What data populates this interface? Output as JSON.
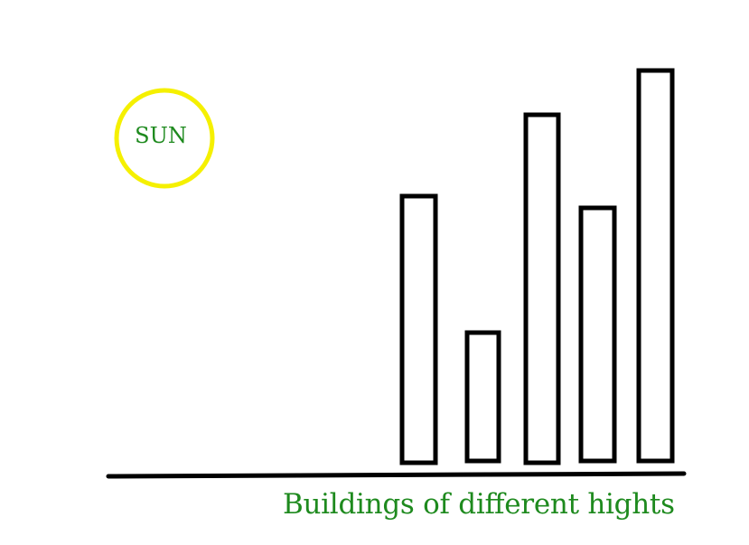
{
  "sun": {
    "label": "SUN"
  },
  "caption": "Buildings of different hights"
}
